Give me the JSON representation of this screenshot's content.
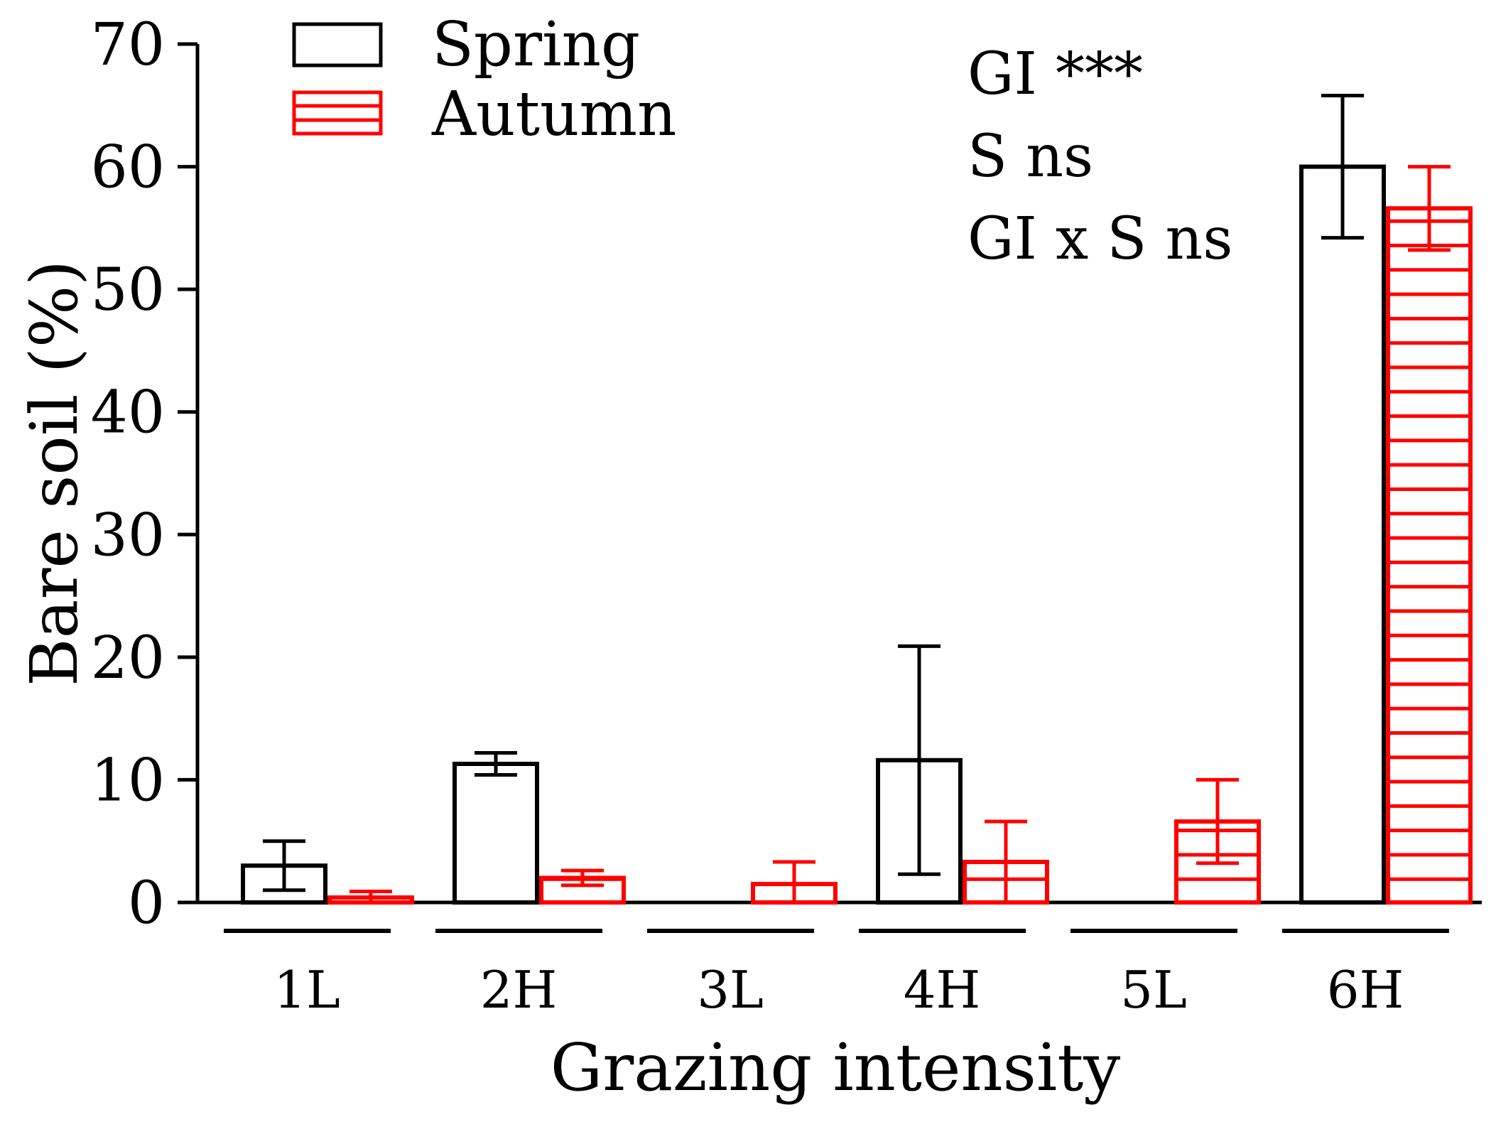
{
  "chart_data": {
    "type": "bar",
    "title": "",
    "xlabel": "Grazing intensity",
    "ylabel": "Bare soil (%)",
    "ylim": [
      0,
      70
    ],
    "yticks": [
      0,
      10,
      20,
      30,
      40,
      50,
      60,
      70
    ],
    "categories": [
      "1L",
      "2H",
      "3L",
      "4H",
      "5L",
      "6H"
    ],
    "series": [
      {
        "name": "Spring",
        "color": "#000000",
        "pattern": "open",
        "values": [
          3.0,
          11.3,
          0,
          11.6,
          0,
          60.0
        ],
        "error": [
          2.0,
          0.9,
          0,
          9.3,
          0,
          5.8
        ]
      },
      {
        "name": "Autumn",
        "color": "#ff0000",
        "pattern": "horizontal-lines",
        "values": [
          0.4,
          2.0,
          1.5,
          3.3,
          6.6,
          56.6
        ],
        "error": [
          0.5,
          0.6,
          1.8,
          3.3,
          3.4,
          3.4
        ]
      }
    ],
    "legend": {
      "position": "top-left",
      "entries": [
        "Spring",
        "Autumn"
      ]
    },
    "annotations": [
      "GI ***",
      "S ns",
      "GI x S ns"
    ]
  }
}
